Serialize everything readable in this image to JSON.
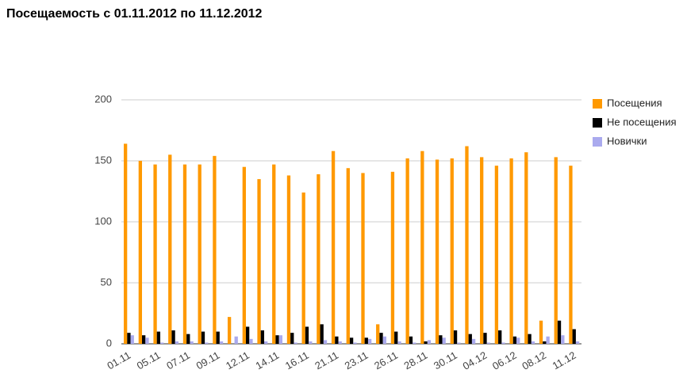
{
  "chart_data": {
    "type": "bar",
    "title": "Посещаемость с 01.11.2012 по 11.12.2012",
    "categories": [
      "01.11",
      null,
      "05.11",
      null,
      "07.11",
      null,
      "09.11",
      null,
      "12.11",
      null,
      "14.11",
      null,
      "16.11",
      null,
      "21.11",
      null,
      "23.11",
      null,
      "26.11",
      null,
      "28.11",
      null,
      "30.11",
      null,
      "04.12",
      null,
      "06.12",
      null,
      "08.12",
      null,
      "11.12"
    ],
    "series": [
      {
        "name": "Посещения",
        "color": "#ff9900",
        "values": [
          164,
          150,
          147,
          155,
          147,
          147,
          154,
          22,
          145,
          135,
          147,
          138,
          124,
          139,
          158,
          144,
          140,
          16,
          141,
          152,
          158,
          151,
          152,
          162,
          153,
          146,
          152,
          157,
          19,
          153,
          146
        ]
      },
      {
        "name": "Не посещения",
        "color": "#000000",
        "values": [
          9,
          7,
          10,
          11,
          8,
          10,
          10,
          0,
          14,
          11,
          7,
          9,
          14,
          16,
          6,
          5,
          5,
          9,
          10,
          6,
          2,
          7,
          11,
          8,
          9,
          11,
          6,
          8,
          2,
          19,
          12
        ]
      },
      {
        "name": "Новички",
        "color": "#aaaaee",
        "values": [
          7,
          5,
          1,
          2,
          2,
          1,
          2,
          6,
          4,
          2,
          7,
          1,
          2,
          3,
          2,
          1,
          4,
          6,
          2,
          1,
          3,
          5,
          1,
          4,
          1,
          1,
          5,
          2,
          6,
          7,
          2
        ]
      }
    ],
    "ylim": [
      0,
      200
    ],
    "yticks": [
      0,
      50,
      100,
      150,
      200
    ],
    "grid": true,
    "legend": "right"
  }
}
